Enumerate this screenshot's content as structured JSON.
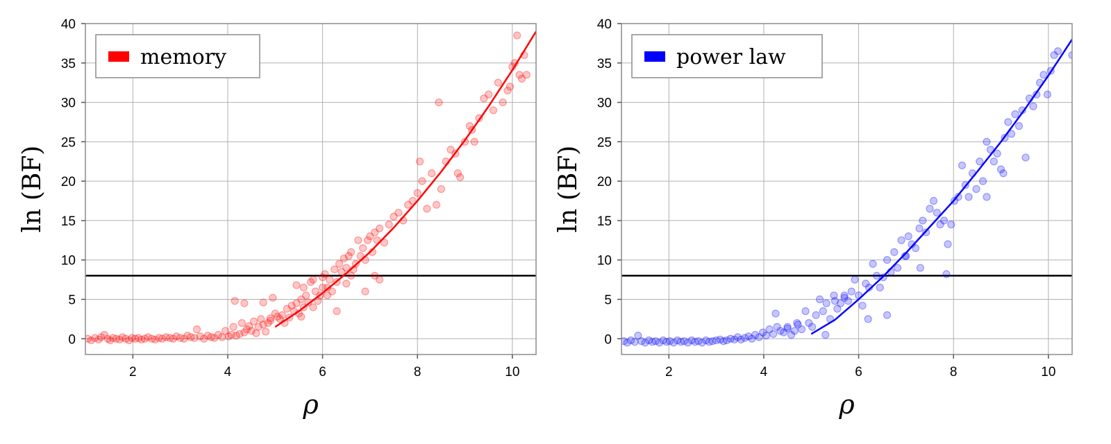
{
  "chart_data": [
    {
      "type": "scatter",
      "xlabel": "ρ",
      "ylabel": "ln (BF)",
      "xlim": [
        1,
        10.5
      ],
      "ylim": [
        -2,
        40
      ],
      "xticks": [
        2,
        4,
        6,
        8,
        10
      ],
      "yticks": [
        0,
        5,
        10,
        15,
        20,
        25,
        30,
        35,
        40
      ],
      "grid": true,
      "legend_position": "top-left",
      "threshold_line": 8,
      "color": "#ff0000",
      "series": [
        {
          "name": "memory",
          "kind": "points",
          "x": [
            1.05,
            1.12,
            1.2,
            1.28,
            1.33,
            1.4,
            1.47,
            1.52,
            1.58,
            1.65,
            1.72,
            1.78,
            1.85,
            1.92,
            1.98,
            2.05,
            2.12,
            2.18,
            2.25,
            2.32,
            2.4,
            2.47,
            2.55,
            2.62,
            2.7,
            2.78,
            2.85,
            2.92,
            3.0,
            3.08,
            3.15,
            3.22,
            3.3,
            3.35,
            3.42,
            3.5,
            3.58,
            3.65,
            3.72,
            3.8,
            3.88,
            3.95,
            4.02,
            4.08,
            4.12,
            4.18,
            4.25,
            4.3,
            4.35,
            4.4,
            4.45,
            4.5,
            4.55,
            4.6,
            4.65,
            4.7,
            4.75,
            4.8,
            4.85,
            4.9,
            4.95,
            5.0,
            5.05,
            5.1,
            5.15,
            5.2,
            5.25,
            5.3,
            5.35,
            5.4,
            5.45,
            5.5,
            5.55,
            5.6,
            5.65,
            5.7,
            5.75,
            5.8,
            5.85,
            5.9,
            5.95,
            6.0,
            6.05,
            6.1,
            6.15,
            6.2,
            6.25,
            6.3,
            6.35,
            6.4,
            6.45,
            6.5,
            6.55,
            6.6,
            6.65,
            6.7,
            6.75,
            6.8,
            6.85,
            6.9,
            6.95,
            7.0,
            7.05,
            7.1,
            7.15,
            7.2,
            7.3,
            7.4,
            7.5,
            7.6,
            7.7,
            7.8,
            7.9,
            8.0,
            8.05,
            8.1,
            8.2,
            8.3,
            8.4,
            8.45,
            8.5,
            8.6,
            8.7,
            8.8,
            8.85,
            8.9,
            9.0,
            9.1,
            9.15,
            9.2,
            9.3,
            9.4,
            9.5,
            9.6,
            9.7,
            9.8,
            9.9,
            9.95,
            10.0,
            10.05,
            10.1,
            10.15,
            10.2,
            10.25,
            10.3,
            4.15,
            4.35,
            4.75,
            4.9,
            5.45,
            5.6,
            5.8,
            6.1,
            6.3,
            6.5,
            6.9,
            7.1,
            7.2,
            5.55,
            6.0,
            6.6
          ],
          "y": [
            0.0,
            -0.2,
            0.1,
            -0.1,
            0.2,
            0.5,
            0.0,
            -0.2,
            0.1,
            0.0,
            -0.1,
            0.2,
            0.0,
            -0.2,
            0.1,
            0.0,
            0.1,
            -0.1,
            0.0,
            0.2,
            0.0,
            -0.1,
            0.1,
            0.0,
            0.2,
            0.1,
            0.0,
            0.3,
            0.1,
            0.0,
            0.4,
            0.2,
            0.1,
            1.2,
            0.3,
            0.0,
            0.4,
            0.2,
            0.1,
            0.5,
            0.2,
            1.0,
            0.3,
            0.5,
            1.5,
            0.4,
            0.6,
            2.0,
            0.8,
            1.2,
            1.6,
            1.0,
            2.2,
            0.7,
            1.5,
            2.5,
            1.8,
            0.9,
            2.0,
            2.6,
            5.2,
            3.2,
            2.8,
            2.5,
            3.0,
            2.0,
            3.8,
            2.7,
            4.2,
            3.5,
            4.5,
            3.2,
            5.0,
            4.0,
            5.5,
            4.6,
            7.2,
            4.0,
            6.0,
            4.8,
            5.5,
            7.8,
            8.2,
            6.5,
            7.5,
            6.0,
            8.8,
            7.2,
            9.5,
            8.5,
            10.2,
            9.0,
            10.5,
            11.0,
            8.8,
            9.5,
            12.5,
            10.5,
            11.5,
            10.0,
            12.5,
            13.0,
            11.0,
            13.5,
            12.5,
            14.0,
            12.2,
            14.5,
            15.5,
            16.0,
            15.0,
            17.0,
            17.5,
            18.5,
            22.5,
            20.0,
            16.5,
            21.0,
            17.0,
            30.0,
            19.0,
            22.5,
            24.0,
            23.5,
            21.0,
            20.5,
            25.0,
            27.0,
            26.5,
            25.0,
            28.0,
            30.5,
            31.0,
            29.0,
            32.5,
            30.0,
            31.5,
            32.0,
            34.5,
            35.0,
            38.5,
            33.5,
            33.0,
            36.0,
            33.5,
            4.8,
            4.5,
            4.6,
            2.3,
            6.8,
            6.5,
            7.5,
            5.5,
            3.5,
            7.0,
            6.0,
            8.0,
            7.5,
            2.8,
            6.5,
            8.0
          ]
        },
        {
          "name": "",
          "kind": "fit-line",
          "x": [
            5.0,
            5.5,
            6.0,
            6.5,
            7.0,
            7.5,
            8.0,
            8.5,
            9.0,
            9.5,
            10.0,
            10.5
          ],
          "y": [
            1.5,
            3.5,
            5.8,
            8.3,
            11.0,
            14.1,
            17.5,
            21.2,
            25.2,
            29.5,
            34.1,
            39.0
          ]
        }
      ]
    },
    {
      "type": "scatter",
      "xlabel": "ρ",
      "ylabel": "ln (BF)",
      "xlim": [
        1,
        10.5
      ],
      "ylim": [
        -2,
        40
      ],
      "xticks": [
        2,
        4,
        6,
        8,
        10
      ],
      "yticks": [
        0,
        5,
        10,
        15,
        20,
        25,
        30,
        35,
        40
      ],
      "grid": true,
      "legend_position": "top-left",
      "threshold_line": 8,
      "color": "#0000ff",
      "series": [
        {
          "name": "power law",
          "kind": "points",
          "x": [
            1.05,
            1.12,
            1.2,
            1.28,
            1.35,
            1.42,
            1.5,
            1.58,
            1.65,
            1.72,
            1.8,
            1.88,
            1.95,
            2.02,
            2.1,
            2.18,
            2.25,
            2.32,
            2.4,
            2.48,
            2.55,
            2.62,
            2.7,
            2.78,
            2.85,
            2.92,
            3.0,
            3.08,
            3.15,
            3.22,
            3.3,
            3.38,
            3.45,
            3.52,
            3.6,
            3.68,
            3.75,
            3.82,
            3.9,
            3.98,
            4.05,
            4.12,
            4.2,
            4.28,
            4.35,
            4.42,
            4.5,
            4.58,
            4.65,
            4.72,
            4.8,
            4.88,
            4.95,
            5.02,
            5.1,
            5.18,
            5.25,
            5.32,
            5.4,
            5.48,
            5.55,
            5.62,
            5.7,
            5.78,
            5.85,
            5.92,
            6.0,
            6.08,
            6.15,
            6.22,
            6.3,
            6.38,
            6.45,
            6.52,
            6.6,
            6.68,
            6.75,
            6.82,
            6.9,
            6.98,
            7.05,
            7.12,
            7.2,
            7.28,
            7.35,
            7.42,
            7.5,
            7.58,
            7.65,
            7.72,
            7.8,
            7.88,
            7.95,
            8.02,
            8.1,
            8.18,
            8.25,
            8.32,
            8.4,
            8.48,
            8.55,
            8.62,
            8.7,
            8.78,
            8.85,
            8.92,
            9.0,
            9.08,
            9.15,
            9.22,
            9.3,
            9.38,
            9.45,
            9.52,
            9.6,
            9.68,
            9.75,
            9.82,
            9.9,
            9.98,
            10.05,
            10.12,
            10.2,
            10.5,
            4.25,
            4.5,
            4.7,
            5.3,
            5.5,
            5.7,
            6.2,
            6.6,
            7.0,
            7.3,
            7.85,
            8.7,
            9.05
          ],
          "y": [
            -0.3,
            -0.5,
            -0.2,
            -0.4,
            0.4,
            -0.3,
            -0.5,
            -0.2,
            -0.4,
            -0.3,
            -0.5,
            -0.2,
            -0.4,
            -0.3,
            -0.5,
            -0.2,
            -0.4,
            -0.3,
            -0.5,
            -0.2,
            -0.4,
            -0.3,
            -0.5,
            -0.2,
            -0.4,
            -0.3,
            -0.2,
            -0.1,
            -0.3,
            -0.2,
            0.0,
            -0.1,
            0.2,
            -0.1,
            0.1,
            0.3,
            0.0,
            0.5,
            0.2,
            0.8,
            0.4,
            1.2,
            0.6,
            1.5,
            1.0,
            0.8,
            1.3,
            0.5,
            1.0,
            1.8,
            1.2,
            3.5,
            2.0,
            1.5,
            3.0,
            5.0,
            3.5,
            4.5,
            2.5,
            5.5,
            3.8,
            4.5,
            5.2,
            4.8,
            6.0,
            7.5,
            5.5,
            4.2,
            7.0,
            6.5,
            9.5,
            8.0,
            6.5,
            7.8,
            10.0,
            8.5,
            11.0,
            9.0,
            12.5,
            10.5,
            13.0,
            12.0,
            11.5,
            14.0,
            15.0,
            13.5,
            16.5,
            17.5,
            16.0,
            14.5,
            15.0,
            12.0,
            14.5,
            17.5,
            18.0,
            22.0,
            19.5,
            18.0,
            21.0,
            19.0,
            22.5,
            20.0,
            25.0,
            24.0,
            22.5,
            23.5,
            21.5,
            25.5,
            27.5,
            26.0,
            28.5,
            27.0,
            29.0,
            23.0,
            30.5,
            29.5,
            31.0,
            32.5,
            33.5,
            31.0,
            34.0,
            36.0,
            36.5,
            36.0,
            3.2,
            1.5,
            2.0,
            0.5,
            4.8,
            5.5,
            2.5,
            3.0,
            10.5,
            9.0,
            8.2,
            18.0,
            21.0
          ]
        },
        {
          "name": "",
          "kind": "fit-line",
          "x": [
            5.0,
            5.5,
            6.0,
            6.5,
            7.0,
            7.5,
            8.0,
            8.5,
            9.0,
            9.5,
            10.0,
            10.5
          ],
          "y": [
            0.6,
            2.4,
            5.0,
            7.8,
            10.9,
            14.2,
            17.5,
            21.2,
            25.0,
            29.1,
            33.4,
            38.0
          ]
        }
      ]
    }
  ]
}
